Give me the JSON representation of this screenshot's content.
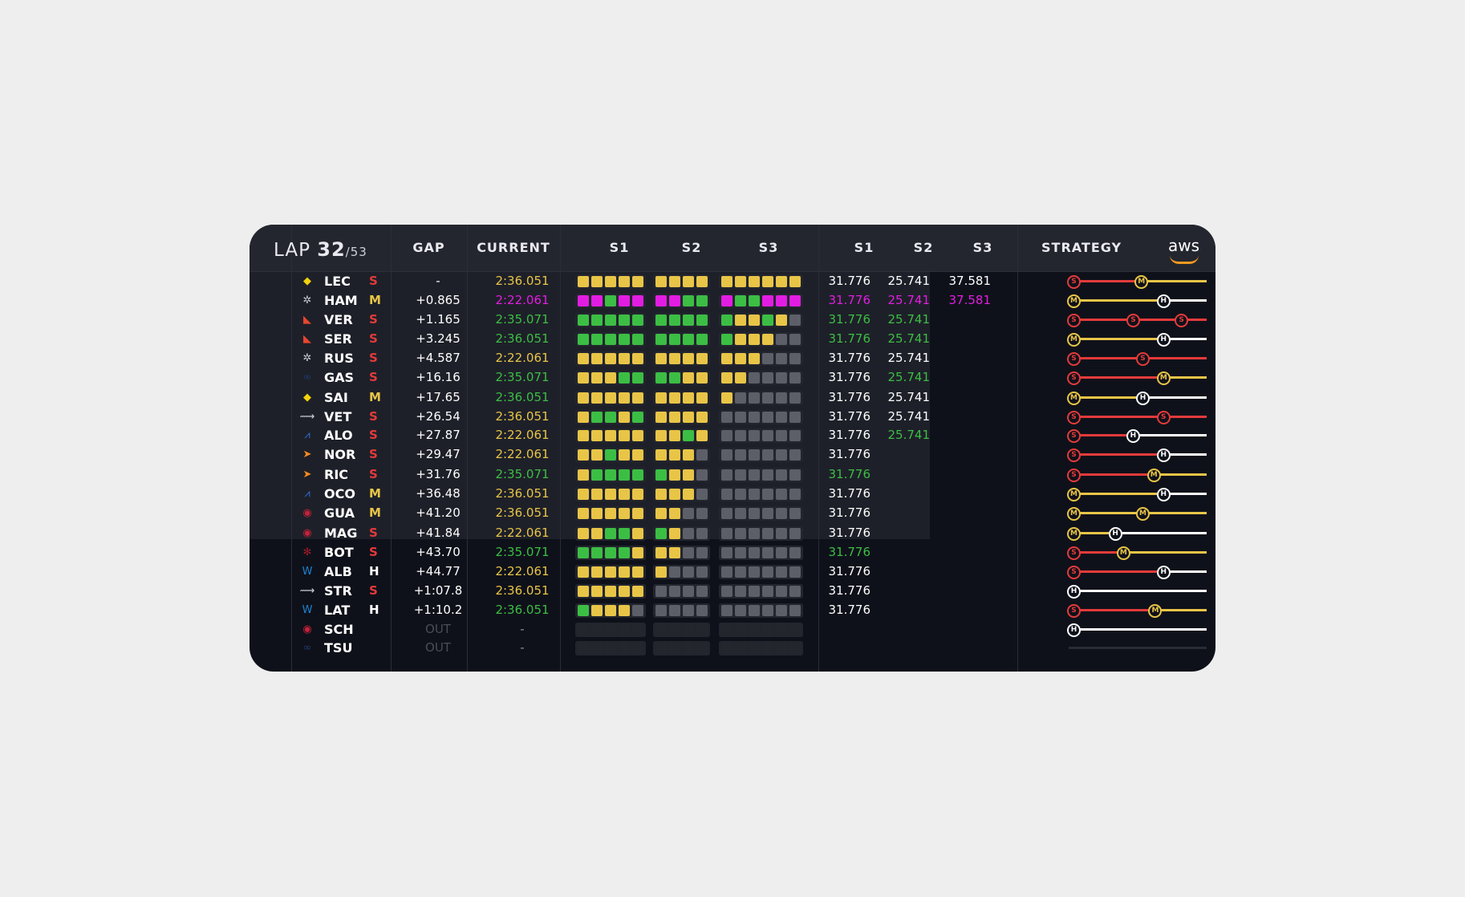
{
  "header": {
    "lap_label": "LAP",
    "lap_current": "32",
    "lap_total": "/53",
    "col_gap": "GAP",
    "col_current": "CURRENT",
    "col_s1": "S1",
    "col_s2": "S2",
    "col_s3": "S3",
    "col_best_s1": "S1",
    "col_best_s2": "S2",
    "col_best_s3": "S3",
    "col_strategy": "STRATEGY",
    "brand": "aws"
  },
  "colors": {
    "yellow": "#e8c547",
    "purple": "#e21de2",
    "green": "#3cbe44",
    "grey": "#5d5f68",
    "dark": "#24262e",
    "white": "#ffffff",
    "soft": "#e33b3b",
    "medium": "#e8c547",
    "hard": "#ffffff"
  },
  "rows": [
    {
      "tla": "LEC",
      "logo": "ferrari-icon",
      "tyre": "S",
      "gap": "-",
      "cur": "2:36.051",
      "curc": "y",
      "s1": "yyyyy",
      "s2": "yyyy",
      "s3": "yyyyyy",
      "b1": "31.776",
      "b1c": "w",
      "b2": "25.741",
      "b2c": "w",
      "b3": "37.581",
      "b3c": "w",
      "strat": [
        [
          "S",
          0
        ],
        [
          "M",
          0.49
        ],
        [
          "end",
          1
        ]
      ]
    },
    {
      "tla": "HAM",
      "logo": "mercedes-icon",
      "tyre": "M",
      "gap": "+0.865",
      "cur": "2:22.061",
      "curc": "m",
      "s1": "mmgmm",
      "s2": "mmgg",
      "s3": "mggmmm",
      "b1": "31.776",
      "b1c": "m",
      "b2": "25.741",
      "b2c": "m",
      "b3": "37.581",
      "b3c": "m",
      "strat": [
        [
          "M",
          0
        ],
        [
          "H",
          0.65
        ],
        [
          "end",
          1
        ]
      ]
    },
    {
      "tla": "VER",
      "logo": "redbull-icon",
      "tyre": "S",
      "gap": "+1.165",
      "cur": "2:35.071",
      "curc": "g",
      "s1": "ggggg",
      "s2": "gggg",
      "s3": "gyygyx",
      "b1": "31.776",
      "b1c": "g",
      "b2": "25.741",
      "b2c": "g",
      "b3": "",
      "b3c": "w",
      "strat": [
        [
          "S",
          0
        ],
        [
          "S",
          0.43
        ],
        [
          "S",
          0.78
        ],
        [
          "end",
          1
        ]
      ]
    },
    {
      "tla": "SER",
      "logo": "redbull-icon",
      "tyre": "S",
      "gap": "+3.245",
      "cur": "2:36.051",
      "curc": "g",
      "s1": "ggggg",
      "s2": "gggg",
      "s3": "gyyyxx",
      "b1": "31.776",
      "b1c": "g",
      "b2": "25.741",
      "b2c": "g",
      "b3": "",
      "b3c": "w",
      "strat": [
        [
          "M",
          0
        ],
        [
          "H",
          0.65
        ],
        [
          "end",
          1
        ]
      ]
    },
    {
      "tla": "RUS",
      "logo": "mercedes-icon",
      "tyre": "S",
      "gap": "+4.587",
      "cur": "2:22.061",
      "curc": "y",
      "s1": "yyyyy",
      "s2": "yyyy",
      "s3": "yyyxxx",
      "b1": "31.776",
      "b1c": "w",
      "b2": "25.741",
      "b2c": "w",
      "b3": "",
      "b3c": "w",
      "strat": [
        [
          "S",
          0
        ],
        [
          "S",
          0.5
        ],
        [
          "end",
          1
        ]
      ]
    },
    {
      "tla": "GAS",
      "logo": "alphatauri-icon",
      "tyre": "S",
      "gap": "+16.16",
      "cur": "2:35.071",
      "curc": "g",
      "s1": "yyygg",
      "s2": "ggyy",
      "s3": "yyxxxx",
      "b1": "31.776",
      "b1c": "w",
      "b2": "25.741",
      "b2c": "g",
      "b3": "",
      "b3c": "w",
      "strat": [
        [
          "S",
          0
        ],
        [
          "M",
          0.65
        ],
        [
          "end",
          1
        ]
      ]
    },
    {
      "tla": "SAI",
      "logo": "ferrari-icon",
      "tyre": "M",
      "gap": "+17.65",
      "cur": "2:36.051",
      "curc": "g",
      "s1": "yyyyy",
      "s2": "yyyy",
      "s3": "yxxxxx",
      "b1": "31.776",
      "b1c": "w",
      "b2": "25.741",
      "b2c": "w",
      "b3": "",
      "b3c": "w",
      "strat": [
        [
          "M",
          0
        ],
        [
          "H",
          0.5
        ],
        [
          "end",
          1
        ]
      ]
    },
    {
      "tla": "VET",
      "logo": "astonmartin-icon",
      "tyre": "S",
      "gap": "+26.54",
      "cur": "2:36.051",
      "curc": "y",
      "s1": "yggyg",
      "s2": "yyyy",
      "s3": "xxxxxx",
      "b1": "31.776",
      "b1c": "w",
      "b2": "25.741",
      "b2c": "w",
      "b3": "",
      "b3c": "w",
      "strat": [
        [
          "S",
          0
        ],
        [
          "S",
          0.65
        ],
        [
          "end",
          1
        ]
      ]
    },
    {
      "tla": "ALO",
      "logo": "alpine-icon",
      "tyre": "S",
      "gap": "+27.87",
      "cur": "2:22.061",
      "curc": "y",
      "s1": "yyyyy",
      "s2": "yygy",
      "s3": "xxxxxx",
      "b1": "31.776",
      "b1c": "w",
      "b2": "25.741",
      "b2c": "g",
      "b3": "",
      "b3c": "w",
      "strat": [
        [
          "S",
          0
        ],
        [
          "H",
          0.43
        ],
        [
          "end",
          1
        ]
      ]
    },
    {
      "tla": "NOR",
      "logo": "mclaren-icon",
      "tyre": "S",
      "gap": "+29.47",
      "cur": "2:22.061",
      "curc": "y",
      "s1": "yygyy",
      "s2": "yyyx",
      "s3": "xxxxxx",
      "b1": "31.776",
      "b1c": "w",
      "b2": "",
      "b2c": "w",
      "b3": "",
      "b3c": "w",
      "strat": [
        [
          "S",
          0
        ],
        [
          "H",
          0.65
        ],
        [
          "end",
          1
        ]
      ]
    },
    {
      "tla": "RIC",
      "logo": "mclaren-icon",
      "tyre": "S",
      "gap": "+31.76",
      "cur": "2:35.071",
      "curc": "g",
      "s1": "ygggg",
      "s2": "gyyx",
      "s3": "xxxxxx",
      "b1": "31.776",
      "b1c": "g",
      "b2": "",
      "b2c": "w",
      "b3": "",
      "b3c": "w",
      "strat": [
        [
          "S",
          0
        ],
        [
          "M",
          0.58
        ],
        [
          "end",
          1
        ]
      ]
    },
    {
      "tla": "OCO",
      "logo": "alpine-icon",
      "tyre": "M",
      "gap": "+36.48",
      "cur": "2:36.051",
      "curc": "y",
      "s1": "yyyyy",
      "s2": "yyyx",
      "s3": "xxxxxx",
      "b1": "31.776",
      "b1c": "w",
      "b2": "",
      "b2c": "w",
      "b3": "",
      "b3c": "w",
      "strat": [
        [
          "M",
          0
        ],
        [
          "H",
          0.65
        ],
        [
          "end",
          1
        ]
      ]
    },
    {
      "tla": "GUA",
      "logo": "haas-icon",
      "tyre": "M",
      "gap": "+41.20",
      "cur": "2:36.051",
      "curc": "y",
      "s1": "yyyyy",
      "s2": "yyxx",
      "s3": "xxxxxx",
      "b1": "31.776",
      "b1c": "w",
      "b2": "",
      "b2c": "w",
      "b3": "",
      "b3c": "w",
      "strat": [
        [
          "M",
          0
        ],
        [
          "M",
          0.5
        ],
        [
          "end",
          1
        ]
      ]
    },
    {
      "tla": "MAG",
      "logo": "haas-icon",
      "tyre": "S",
      "gap": "+41.84",
      "cur": "2:22.061",
      "curc": "y",
      "s1": "yyggy",
      "s2": "gyxx",
      "s3": "xxxxxx",
      "b1": "31.776",
      "b1c": "w",
      "b2": "",
      "b2c": "w",
      "b3": "",
      "b3c": "w",
      "strat": [
        [
          "M",
          0
        ],
        [
          "H",
          0.3
        ],
        [
          "end",
          1
        ]
      ]
    },
    {
      "tla": "BOT",
      "logo": "alfaromeo-icon",
      "tyre": "S",
      "gap": "+43.70",
      "cur": "2:35.071",
      "curc": "g",
      "s1": "ggggy",
      "s2": "yyxx",
      "s3": "xxxxxx",
      "b1": "31.776",
      "b1c": "g",
      "b2": "",
      "b2c": "w",
      "b3": "",
      "b3c": "w",
      "strat": [
        [
          "S",
          0
        ],
        [
          "M",
          0.36
        ],
        [
          "end",
          1
        ]
      ]
    },
    {
      "tla": "ALB",
      "logo": "williams-icon",
      "tyre": "H",
      "gap": "+44.77",
      "cur": "2:22.061",
      "curc": "y",
      "s1": "yyyyy",
      "s2": "yxxx",
      "s3": "xxxxxx",
      "b1": "31.776",
      "b1c": "w",
      "b2": "",
      "b2c": "w",
      "b3": "",
      "b3c": "w",
      "strat": [
        [
          "S",
          0
        ],
        [
          "H",
          0.65
        ],
        [
          "end",
          1
        ]
      ]
    },
    {
      "tla": "STR",
      "logo": "astonmartin-icon",
      "tyre": "S",
      "gap": "+1:07.8",
      "cur": "2:36.051",
      "curc": "y",
      "s1": "yyyyy",
      "s2": "xxxx",
      "s3": "xxxxxx",
      "b1": "31.776",
      "b1c": "w",
      "b2": "",
      "b2c": "w",
      "b3": "",
      "b3c": "w",
      "strat": [
        [
          "H",
          0
        ],
        [
          "end",
          1
        ]
      ]
    },
    {
      "tla": "LAT",
      "logo": "williams-icon",
      "tyre": "H",
      "gap": "+1:10.2",
      "cur": "2:36.051",
      "curc": "g",
      "s1": "gyyyx",
      "s2": "xxxx",
      "s3": "xxxxxx",
      "b1": "31.776",
      "b1c": "w",
      "b2": "",
      "b2c": "w",
      "b3": "",
      "b3c": "w",
      "strat": [
        [
          "S",
          0
        ],
        [
          "M",
          0.59
        ],
        [
          "end",
          1
        ]
      ]
    },
    {
      "tla": "SCH",
      "logo": "haas-icon",
      "tyre": "",
      "gap": "OUT",
      "cur": "-",
      "curc": "dash",
      "s1": "ddddd",
      "s2": "dddd",
      "s3": "dddddd",
      "b1": "",
      "b1c": "w",
      "b2": "",
      "b2c": "w",
      "b3": "",
      "b3c": "w",
      "strat": [
        [
          "H",
          0
        ],
        [
          "end",
          1
        ]
      ]
    },
    {
      "tla": "TSU",
      "logo": "alphatauri-icon",
      "tyre": "",
      "gap": "OUT",
      "cur": "-",
      "curc": "dash",
      "s1": "ddddd",
      "s2": "dddd",
      "s3": "dddddd",
      "b1": "",
      "b1c": "w",
      "b2": "",
      "b2c": "w",
      "b3": "",
      "b3c": "w",
      "strat": []
    }
  ]
}
